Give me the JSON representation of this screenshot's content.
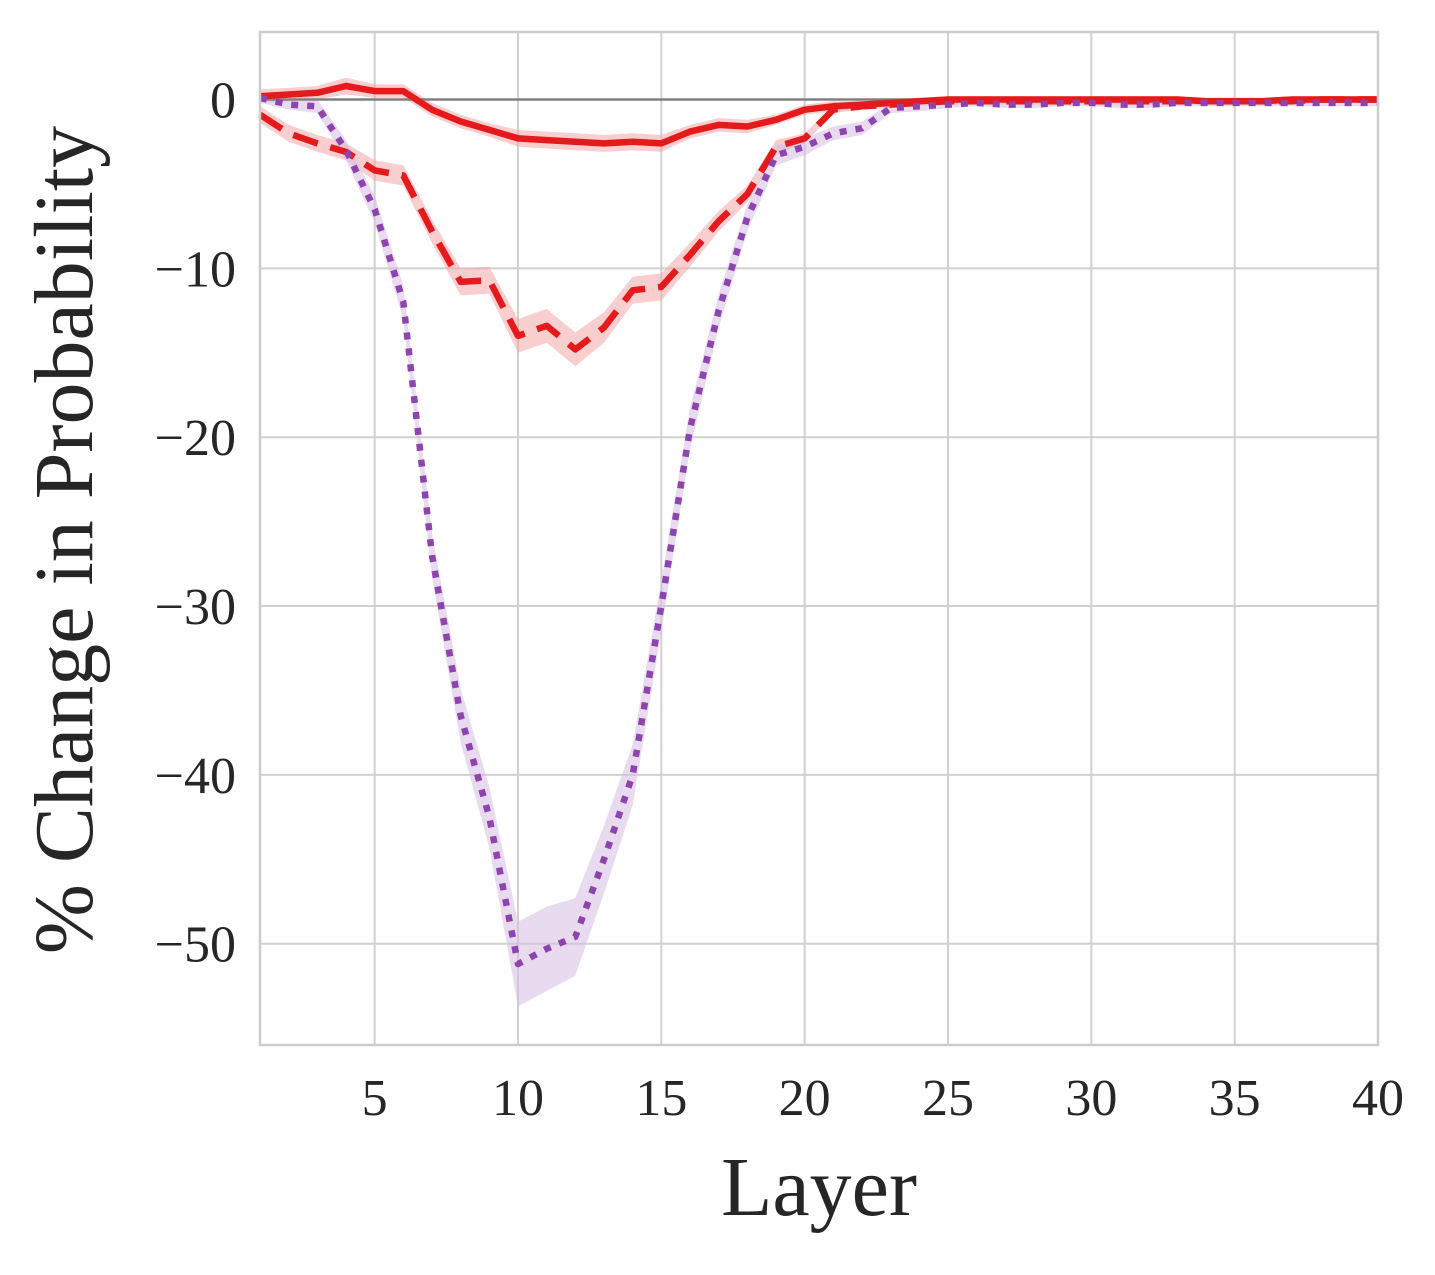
{
  "chart_data": {
    "type": "line",
    "title": "",
    "xlabel": "Layer",
    "ylabel": "% Change in Probability",
    "xlim": [
      1,
      40
    ],
    "ylim": [
      -56,
      4
    ],
    "xticks": [
      5,
      10,
      15,
      20,
      25,
      30,
      35,
      40
    ],
    "yticks": [
      0,
      -10,
      -20,
      -30,
      -40,
      -50
    ],
    "xtick_labels": [
      "5",
      "10",
      "15",
      "20",
      "25",
      "30",
      "35",
      "40"
    ],
    "ytick_labels": [
      "0",
      "−10",
      "−20",
      "−30",
      "−40",
      "−50"
    ],
    "grid": true,
    "legend": "none",
    "reference_line": {
      "y": 0,
      "color": "#808080"
    },
    "x": [
      1,
      2,
      3,
      4,
      5,
      6,
      7,
      8,
      9,
      10,
      11,
      12,
      13,
      14,
      15,
      16,
      17,
      18,
      19,
      20,
      21,
      22,
      23,
      24,
      25,
      26,
      27,
      28,
      29,
      30,
      31,
      32,
      33,
      34,
      35,
      36,
      37,
      38,
      39,
      40
    ],
    "series": [
      {
        "style": "solid",
        "color": "#e41a1c",
        "band_color": "#f4a6a7",
        "values": [
          0.2,
          0.3,
          0.4,
          0.8,
          0.5,
          0.5,
          -0.6,
          -1.3,
          -1.8,
          -2.3,
          -2.4,
          -2.5,
          -2.6,
          -2.5,
          -2.6,
          -1.9,
          -1.5,
          -1.6,
          -1.2,
          -0.6,
          -0.4,
          -0.3,
          -0.2,
          -0.1,
          0.0,
          0.0,
          0.0,
          0.0,
          0.0,
          0.0,
          0.0,
          0.0,
          0.0,
          -0.1,
          -0.1,
          -0.1,
          0.0,
          0.0,
          0.0,
          0.0
        ],
        "band": [
          0.4,
          0.4,
          0.4,
          0.5,
          0.4,
          0.4,
          0.4,
          0.4,
          0.4,
          0.5,
          0.5,
          0.5,
          0.5,
          0.5,
          0.5,
          0.4,
          0.4,
          0.4,
          0.3,
          0.3,
          0.3,
          0.2,
          0.2,
          0.2,
          0.2,
          0.2,
          0.2,
          0.2,
          0.2,
          0.2,
          0.2,
          0.2,
          0.2,
          0.2,
          0.2,
          0.2,
          0.2,
          0.2,
          0.2,
          0.2
        ]
      },
      {
        "style": "dashed",
        "color": "#e41a1c",
        "band_color": "#f4a6a7",
        "values": [
          -0.9,
          -2.0,
          -2.6,
          -3.1,
          -4.2,
          -4.5,
          -7.8,
          -10.8,
          -10.7,
          -14.0,
          -13.4,
          -14.8,
          -13.5,
          -11.3,
          -11.1,
          -9.2,
          -7.2,
          -5.6,
          -2.8,
          -2.3,
          -0.6,
          -0.4,
          -0.3,
          -0.2,
          -0.1,
          -0.1,
          -0.1,
          -0.1,
          -0.1,
          -0.1,
          -0.1,
          -0.1,
          -0.1,
          -0.1,
          -0.1,
          -0.1,
          -0.1,
          0.0,
          0.0,
          0.0
        ],
        "band": [
          0.5,
          0.5,
          0.5,
          0.5,
          0.6,
          0.6,
          0.7,
          0.8,
          0.8,
          1.0,
          1.0,
          1.0,
          0.9,
          0.8,
          0.8,
          0.7,
          0.6,
          0.5,
          0.4,
          0.3,
          0.2,
          0.2,
          0.2,
          0.2,
          0.2,
          0.2,
          0.2,
          0.2,
          0.2,
          0.2,
          0.2,
          0.2,
          0.2,
          0.2,
          0.2,
          0.2,
          0.2,
          0.2,
          0.2,
          0.2
        ]
      },
      {
        "style": "dotted",
        "color": "#8e44ad",
        "band_color": "#d7bde2",
        "values": [
          0.1,
          -0.3,
          -0.4,
          -3.0,
          -6.5,
          -12.0,
          -27.0,
          -36.5,
          -42.5,
          -51.2,
          -50.3,
          -49.6,
          -45.0,
          -40.0,
          -30.0,
          -19.5,
          -12.5,
          -7.0,
          -3.3,
          -2.8,
          -2.0,
          -1.7,
          -0.5,
          -0.4,
          -0.3,
          -0.2,
          -0.3,
          -0.3,
          -0.2,
          -0.2,
          -0.3,
          -0.3,
          -0.2,
          -0.2,
          -0.2,
          -0.2,
          -0.2,
          -0.2,
          -0.2,
          -0.2
        ],
        "band": [
          0.3,
          0.3,
          0.4,
          0.6,
          0.8,
          1.0,
          1.3,
          1.6,
          1.8,
          2.5,
          2.5,
          2.3,
          2.0,
          1.8,
          1.5,
          1.2,
          1.0,
          0.8,
          0.6,
          0.5,
          0.4,
          0.4,
          0.3,
          0.3,
          0.2,
          0.2,
          0.2,
          0.2,
          0.2,
          0.2,
          0.2,
          0.2,
          0.2,
          0.2,
          0.2,
          0.2,
          0.2,
          0.2,
          0.2,
          0.2
        ]
      }
    ]
  }
}
